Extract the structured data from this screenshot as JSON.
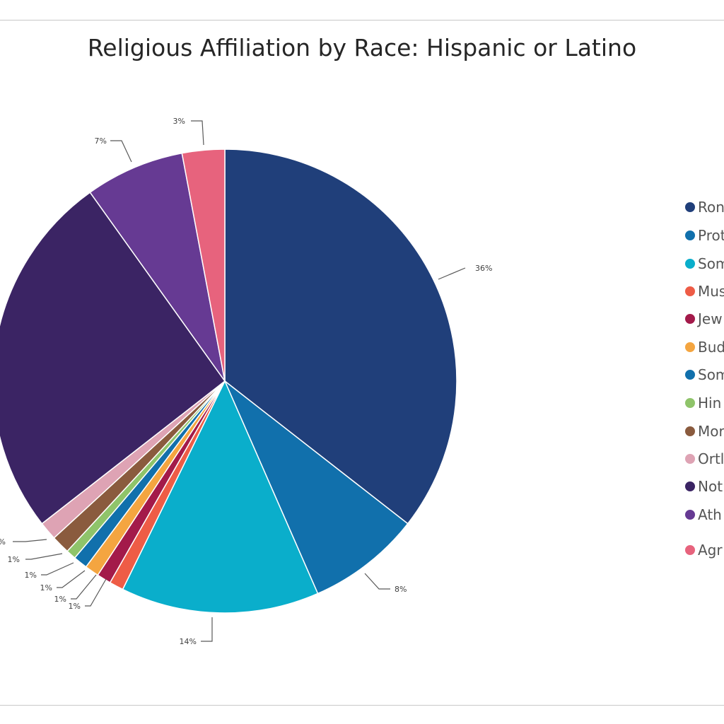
{
  "chart_data": {
    "type": "pie",
    "title": "Religious Affiliation by Race: Hispanic or Latino",
    "start_angle_deg": 0,
    "direction": "clockwise",
    "legend_position": "right",
    "slices": [
      {
        "name": "Ron",
        "value": 36,
        "label": "36%",
        "color": "#203f7a"
      },
      {
        "name": "Prot",
        "value": 8,
        "label": "8%",
        "color": "#1170ac"
      },
      {
        "name": "Som",
        "value": 14,
        "label": "14%",
        "color": "#0aaecb"
      },
      {
        "name": "Mus",
        "value": 1,
        "label": "1%",
        "color": "#ee5c46"
      },
      {
        "name": "Jew",
        "value": 1,
        "label": "1%",
        "color": "#a31a4a"
      },
      {
        "name": "Bud",
        "value": 1,
        "label": "1%",
        "color": "#f4a540"
      },
      {
        "name": "Som",
        "value": 1,
        "label": "1%",
        "color": "#1170ac"
      },
      {
        "name": "Hin",
        "value": 0.7,
        "label": "1%",
        "color": "#8fc46a"
      },
      {
        "name": "Mor",
        "value": 1.3,
        "label": "1%",
        "color": "#8a5b3e"
      },
      {
        "name": "Ortl",
        "value": 1.3,
        "label": "%",
        "color": "#dea3b4"
      },
      {
        "name": "Not",
        "value": 26,
        "label": "",
        "color": "#3b2464"
      },
      {
        "name": "Ath",
        "value": 7,
        "label": "7%",
        "color": "#663a93"
      },
      {
        "name": "Agr",
        "value": 3,
        "label": "3%",
        "color": "#e7637d"
      }
    ]
  }
}
